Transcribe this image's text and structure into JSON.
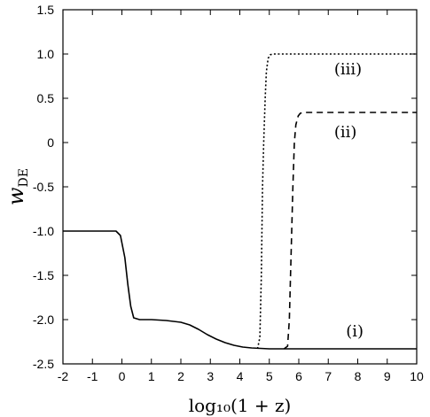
{
  "chart_data": {
    "type": "line",
    "xlabel": "log₁₀(1 + z)",
    "ylabel": "w",
    "ylabel_sub": "DE",
    "xlim": [
      -2,
      10
    ],
    "ylim": [
      -2.5,
      1.5
    ],
    "xticks": [
      -2,
      -1,
      0,
      1,
      2,
      3,
      4,
      5,
      6,
      7,
      8,
      9,
      10
    ],
    "yticks": [
      1.5,
      1.0,
      0.5,
      0,
      -0.5,
      -1.0,
      -1.5,
      -2.0,
      -2.5
    ],
    "ytick_labels": [
      "1.5",
      "1.0",
      "0.5",
      "0",
      "-0.5",
      "-1.0",
      "-1.5",
      "-2.0",
      "-2.5"
    ],
    "grid": false,
    "series": [
      {
        "name": "(i)",
        "style": "solid",
        "x": [
          -2,
          -0.2,
          -0.05,
          0.1,
          0.2,
          0.3,
          0.4,
          0.6,
          1,
          1.5,
          2,
          2.3,
          2.6,
          2.9,
          3.2,
          3.5,
          3.8,
          4.1,
          4.4,
          5,
          6,
          7,
          8,
          9,
          10
        ],
        "y": [
          -1.0,
          -1.0,
          -1.05,
          -1.3,
          -1.6,
          -1.85,
          -1.98,
          -2.0,
          -2.0,
          -2.01,
          -2.03,
          -2.06,
          -2.11,
          -2.17,
          -2.22,
          -2.26,
          -2.29,
          -2.31,
          -2.32,
          -2.33,
          -2.33,
          -2.33,
          -2.33,
          -2.33,
          -2.33
        ]
      },
      {
        "name": "(ii)",
        "style": "dashed",
        "x": [
          5.5,
          5.62,
          5.68,
          5.72,
          5.76,
          5.8,
          5.85,
          5.9,
          5.98,
          6.05,
          6.15,
          6.3,
          10
        ],
        "y": [
          -2.33,
          -2.3,
          -2.0,
          -1.5,
          -1.0,
          -0.5,
          0.0,
          0.2,
          0.3,
          0.33,
          0.34,
          0.34,
          0.34
        ]
      },
      {
        "name": "(iii)",
        "style": "dotted",
        "x": [
          4.6,
          4.68,
          4.73,
          4.77,
          4.81,
          4.86,
          4.9,
          4.96,
          5.03,
          5.1,
          5.25,
          10
        ],
        "y": [
          -2.33,
          -2.2,
          -1.5,
          -0.5,
          0.0,
          0.5,
          0.8,
          0.95,
          0.99,
          1.0,
          1.0,
          1.0
        ]
      }
    ],
    "annotations": [
      {
        "text": "(iii)",
        "x": 7.2,
        "y": 0.77
      },
      {
        "text": "(ii)",
        "x": 7.2,
        "y": 0.06
      },
      {
        "text": "(i)",
        "x": 7.6,
        "y": -2.19
      }
    ]
  }
}
